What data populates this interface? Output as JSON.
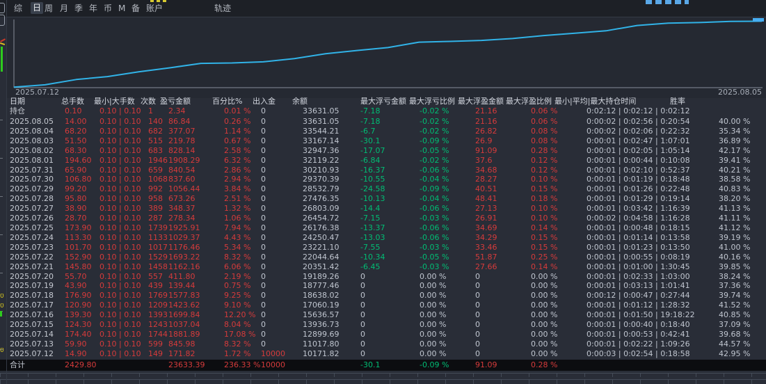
{
  "menu": {
    "items": [
      {
        "label": "综",
        "selected": false
      },
      {
        "label": "日",
        "selected": true
      },
      {
        "label": "周",
        "selected": false
      },
      {
        "label": "月",
        "selected": false
      },
      {
        "label": "季",
        "selected": false
      },
      {
        "label": "年",
        "selected": false
      },
      {
        "label": "币",
        "selected": false
      },
      {
        "label": "M",
        "selected": false
      },
      {
        "label": "备",
        "selected": false
      },
      {
        "label": "账户",
        "selected": false
      },
      {
        "label": "轨迹",
        "selected": false
      }
    ]
  },
  "chart": {
    "start_label": "2025.07.12",
    "end_label": "2025.08.05",
    "line_color": "#31b3e8"
  },
  "chart_data": {
    "type": "line",
    "x": [
      "2025.07.12",
      "2025.07.13",
      "2025.07.14",
      "2025.07.15",
      "2025.07.16",
      "2025.07.17",
      "2025.07.18",
      "2025.07.19",
      "2025.07.20",
      "2025.07.21",
      "2025.07.22",
      "2025.07.23",
      "2025.07.24",
      "2025.07.25",
      "2025.07.26",
      "2025.07.27",
      "2025.07.28",
      "2025.07.29",
      "2025.07.30",
      "2025.07.31",
      "2025.08.01",
      "2025.08.02",
      "2025.08.03",
      "2025.08.04",
      "2025.08.05"
    ],
    "series": [
      {
        "name": "余额",
        "values": [
          10171.82,
          11017.8,
          12899.69,
          13936.73,
          15636.57,
          17060.19,
          18638.02,
          18777.46,
          19189.26,
          20351.42,
          22044.64,
          23221.1,
          24250.47,
          26176.38,
          26454.72,
          26803.09,
          27476.35,
          28532.79,
          29370.39,
          30210.93,
          32119.22,
          32947.36,
          33167.14,
          33544.21,
          33631.05
        ]
      }
    ],
    "xlabel": "",
    "ylabel": "",
    "ylim": [
      10000,
      34000
    ],
    "grid": false,
    "legend": false,
    "visible_tick_labels": [
      "2025.07.12",
      "2025.08.05"
    ]
  },
  "table": {
    "headers": [
      "日期",
      "总手数",
      "最小|大手数",
      "次数",
      "盈亏金额",
      "百分比%",
      "出入金",
      "余额",
      "最大浮亏金额",
      "最大浮亏比例",
      "最大浮盈金额",
      "最大浮盈比例",
      "最小|平均|最大持仓时间",
      "胜率"
    ],
    "position_row": [
      "持仓",
      "0.10",
      "0.10 | 0.10",
      "1",
      "2.34",
      "0.01 %",
      "0",
      "33631.05",
      "-7.18",
      "-0.02 %",
      "21.16",
      "0.06 %",
      "0:02:12 | 0:02:12 | 0:02:12",
      ""
    ],
    "rows": [
      [
        "2025.08.05",
        "14.00",
        "0.10 | 0.10",
        "140",
        "86.84",
        "0.26 %",
        "0",
        "33631.05",
        "-7.18",
        "-0.02 %",
        "21.16",
        "0.06 %",
        "0:00:02 | 0:02:56 | 0:20:54",
        "40.00 %"
      ],
      [
        "2025.08.04",
        "68.20",
        "0.10 | 0.10",
        "682",
        "377.07",
        "1.14 %",
        "0",
        "33544.21",
        "-6.7",
        "-0.02 %",
        "26.82",
        "0.08 %",
        "0:00:02 | 0:02:06 | 0:22:32",
        "35.34 %"
      ],
      [
        "2025.08.03",
        "51.50",
        "0.10 | 0.10",
        "515",
        "219.78",
        "0.67 %",
        "0",
        "33167.14",
        "-30.1",
        "-0.09 %",
        "26.9",
        "0.08 %",
        "0:00:01 | 0:02:47 | 1:07:01",
        "36.89 %"
      ],
      [
        "2025.08.02",
        "68.30",
        "0.10 | 0.10",
        "683",
        "828.14",
        "2.58 %",
        "0",
        "32947.36",
        "-17.07",
        "-0.05 %",
        "91.09",
        "0.28 %",
        "0:00:01 | 0:02:05 | 1:05:14",
        "42.17 %"
      ],
      [
        "2025.08.01",
        "194.60",
        "0.10 | 0.10",
        "1946",
        "1908.29",
        "6.32 %",
        "0",
        "32119.22",
        "-6.84",
        "-0.02 %",
        "37.6",
        "0.12 %",
        "0:00:01 | 0:00:44 | 0:10:08",
        "39.41 %"
      ],
      [
        "2025.07.31",
        "65.90",
        "0.10 | 0.10",
        "659",
        "840.54",
        "2.86 %",
        "0",
        "30210.93",
        "-16.37",
        "-0.06 %",
        "34.68",
        "0.12 %",
        "0:00:01 | 0:02:10 | 0:52:37",
        "40.21 %"
      ],
      [
        "2025.07.30",
        "106.80",
        "0.10 | 0.10",
        "1068",
        "837.60",
        "2.94 %",
        "0",
        "29370.39",
        "-10.55",
        "-0.04 %",
        "28.27",
        "0.10 %",
        "0:00:01 | 0:01:19 | 0:18:48",
        "38.58 %"
      ],
      [
        "2025.07.29",
        "99.20",
        "0.10 | 0.10",
        "992",
        "1056.44",
        "3.84 %",
        "0",
        "28532.79",
        "-24.58",
        "-0.09 %",
        "40.51",
        "0.15 %",
        "0:00:01 | 0:01:26 | 0:22:48",
        "40.83 %"
      ],
      [
        "2025.07.28",
        "95.80",
        "0.10 | 0.10",
        "958",
        "673.26",
        "2.51 %",
        "0",
        "27476.35",
        "-10.13",
        "-0.04 %",
        "48.41",
        "0.18 %",
        "0:00:01 | 0:01:29 | 0:19:14",
        "38.20 %"
      ],
      [
        "2025.07.27",
        "38.90",
        "0.10 | 0.10",
        "389",
        "348.37",
        "1.32 %",
        "0",
        "26803.09",
        "-14.4",
        "-0.06 %",
        "27.13",
        "0.10 %",
        "0:00:01 | 0:03:42 | 1:16:39",
        "41.13 %"
      ],
      [
        "2025.07.26",
        "28.70",
        "0.10 | 0.10",
        "287",
        "278.34",
        "1.06 %",
        "0",
        "26454.72",
        "-7.15",
        "-0.03 %",
        "26.91",
        "0.10 %",
        "0:00:02 | 0:04:58 | 1:16:28",
        "41.11 %"
      ],
      [
        "2025.07.25",
        "173.90",
        "0.10 | 0.10",
        "1739",
        "1925.91",
        "7.94 %",
        "0",
        "26176.38",
        "-13.37",
        "-0.06 %",
        "34.69",
        "0.14 %",
        "0:00:01 | 0:00:48 | 0:18:15",
        "41.12 %"
      ],
      [
        "2025.07.24",
        "113.30",
        "0.10 | 0.10",
        "1133",
        "1029.37",
        "4.43 %",
        "0",
        "24250.47",
        "-13.03",
        "-0.06 %",
        "34.29",
        "0.15 %",
        "0:00:01 | 0:01:14 | 0:13:58",
        "39.19 %"
      ],
      [
        "2025.07.23",
        "101.70",
        "0.10 | 0.10",
        "1017",
        "1176.46",
        "5.34 %",
        "0",
        "23221.10",
        "-7.55",
        "-0.03 %",
        "33.46",
        "0.15 %",
        "0:00:01 | 0:01:23 | 0:13:50",
        "41.00 %"
      ],
      [
        "2025.07.22",
        "152.90",
        "0.10 | 0.10",
        "1529",
        "1693.22",
        "8.32 %",
        "0",
        "22044.64",
        "-10.34",
        "-0.05 %",
        "51.87",
        "0.25 %",
        "0:00:01 | 0:00:55 | 0:08:19",
        "40.16 %"
      ],
      [
        "2025.07.21",
        "145.80",
        "0.10 | 0.10",
        "1458",
        "1162.16",
        "6.06 %",
        "0",
        "20351.42",
        "-6.45",
        "-0.03 %",
        "27.66",
        "0.14 %",
        "0:00:01 | 0:01:00 | 1:30:45",
        "39.85 %"
      ],
      [
        "2025.07.20",
        "55.70",
        "0.10 | 0.10",
        "557",
        "411.80",
        "2.19 %",
        "0",
        "19189.26",
        "0",
        "0.00 %",
        "0",
        "0.00 %",
        "0:00:01 | 0:02:33 | 1:03:00",
        "38.24 %"
      ],
      [
        "2025.07.19",
        "43.90",
        "0.10 | 0.10",
        "439",
        "139.44",
        "0.75 %",
        "0",
        "18777.46",
        "0",
        "0.00 %",
        "0",
        "0.00 %",
        "0:00:01 | 0:03:13 | 1:01:41",
        "37.36 %"
      ],
      [
        "2025.07.18",
        "176.90",
        "0.10 | 0.10",
        "1769",
        "1577.83",
        "9.25 %",
        "0",
        "18638.02",
        "0",
        "0.00 %",
        "0",
        "0.00 %",
        "0:00:12 | 0:00:47 | 0:27:44",
        "39.74 %"
      ],
      [
        "2025.07.17",
        "120.90",
        "0.10 | 0.10",
        "1209",
        "1423.62",
        "9.10 %",
        "0",
        "17060.19",
        "0",
        "0.00 %",
        "0",
        "0.00 %",
        "0:00:01 | 0:01:12 | 1:28:32",
        "41.52 %"
      ],
      [
        "2025.07.16",
        "139.30",
        "0.10 | 0.10",
        "1393",
        "1699.84",
        "12.20 %",
        "0",
        "15636.57",
        "0",
        "0.00 %",
        "0",
        "0.00 %",
        "0:00:01 | 0:01:50 | 19:18:22",
        "40.85 %"
      ],
      [
        "2025.07.15",
        "124.30",
        "0.10 | 0.10",
        "1243",
        "1037.04",
        "8.04 %",
        "0",
        "13936.73",
        "0",
        "0.00 %",
        "0",
        "0.00 %",
        "0:00:01 | 0:00:40 | 0:18:40",
        "37.09 %"
      ],
      [
        "2025.07.14",
        "174.40",
        "0.10 | 0.10",
        "1744",
        "1881.89",
        "17.08 %",
        "0",
        "12899.69",
        "0",
        "0.00 %",
        "0",
        "0.00 %",
        "0:00:01 | 0:00:53 | 0:42:41",
        "39.68 %"
      ],
      [
        "2025.07.13",
        "59.90",
        "0.10 | 0.10",
        "599",
        "845.98",
        "8.32 %",
        "0",
        "11017.80",
        "0",
        "0.00 %",
        "0",
        "0.00 %",
        "0:00:01 | 0:02:22 | 1:09:26",
        "44.57 %"
      ],
      [
        "2025.07.12",
        "14.90",
        "0.10 | 0.10",
        "149",
        "171.82",
        "1.72 %",
        "10000",
        "10171.82",
        "0",
        "0.00 %",
        "0",
        "0.00 %",
        "0:00:03 | 0:02:54 | 0:18:58",
        "42.95 %"
      ]
    ],
    "total_row": [
      "合计",
      "2429.80",
      "",
      "",
      "23633.39",
      "236.33 %",
      "10000",
      "",
      "-30.1",
      "-0.09 %",
      "91.09",
      "0.28 %",
      "",
      ""
    ]
  },
  "artifacts": {
    "left_strip_fragments": [
      "0",
      "0",
      "0"
    ]
  },
  "colors": {
    "positive_text": "#d63b3b",
    "negative_text": "#00bd74",
    "neutral_text": "#c0c6d0",
    "line": "#31b3e8",
    "total_row_bg": "#0c0d10",
    "background": "#292d37",
    "menubar_bg": "#1d2026"
  }
}
